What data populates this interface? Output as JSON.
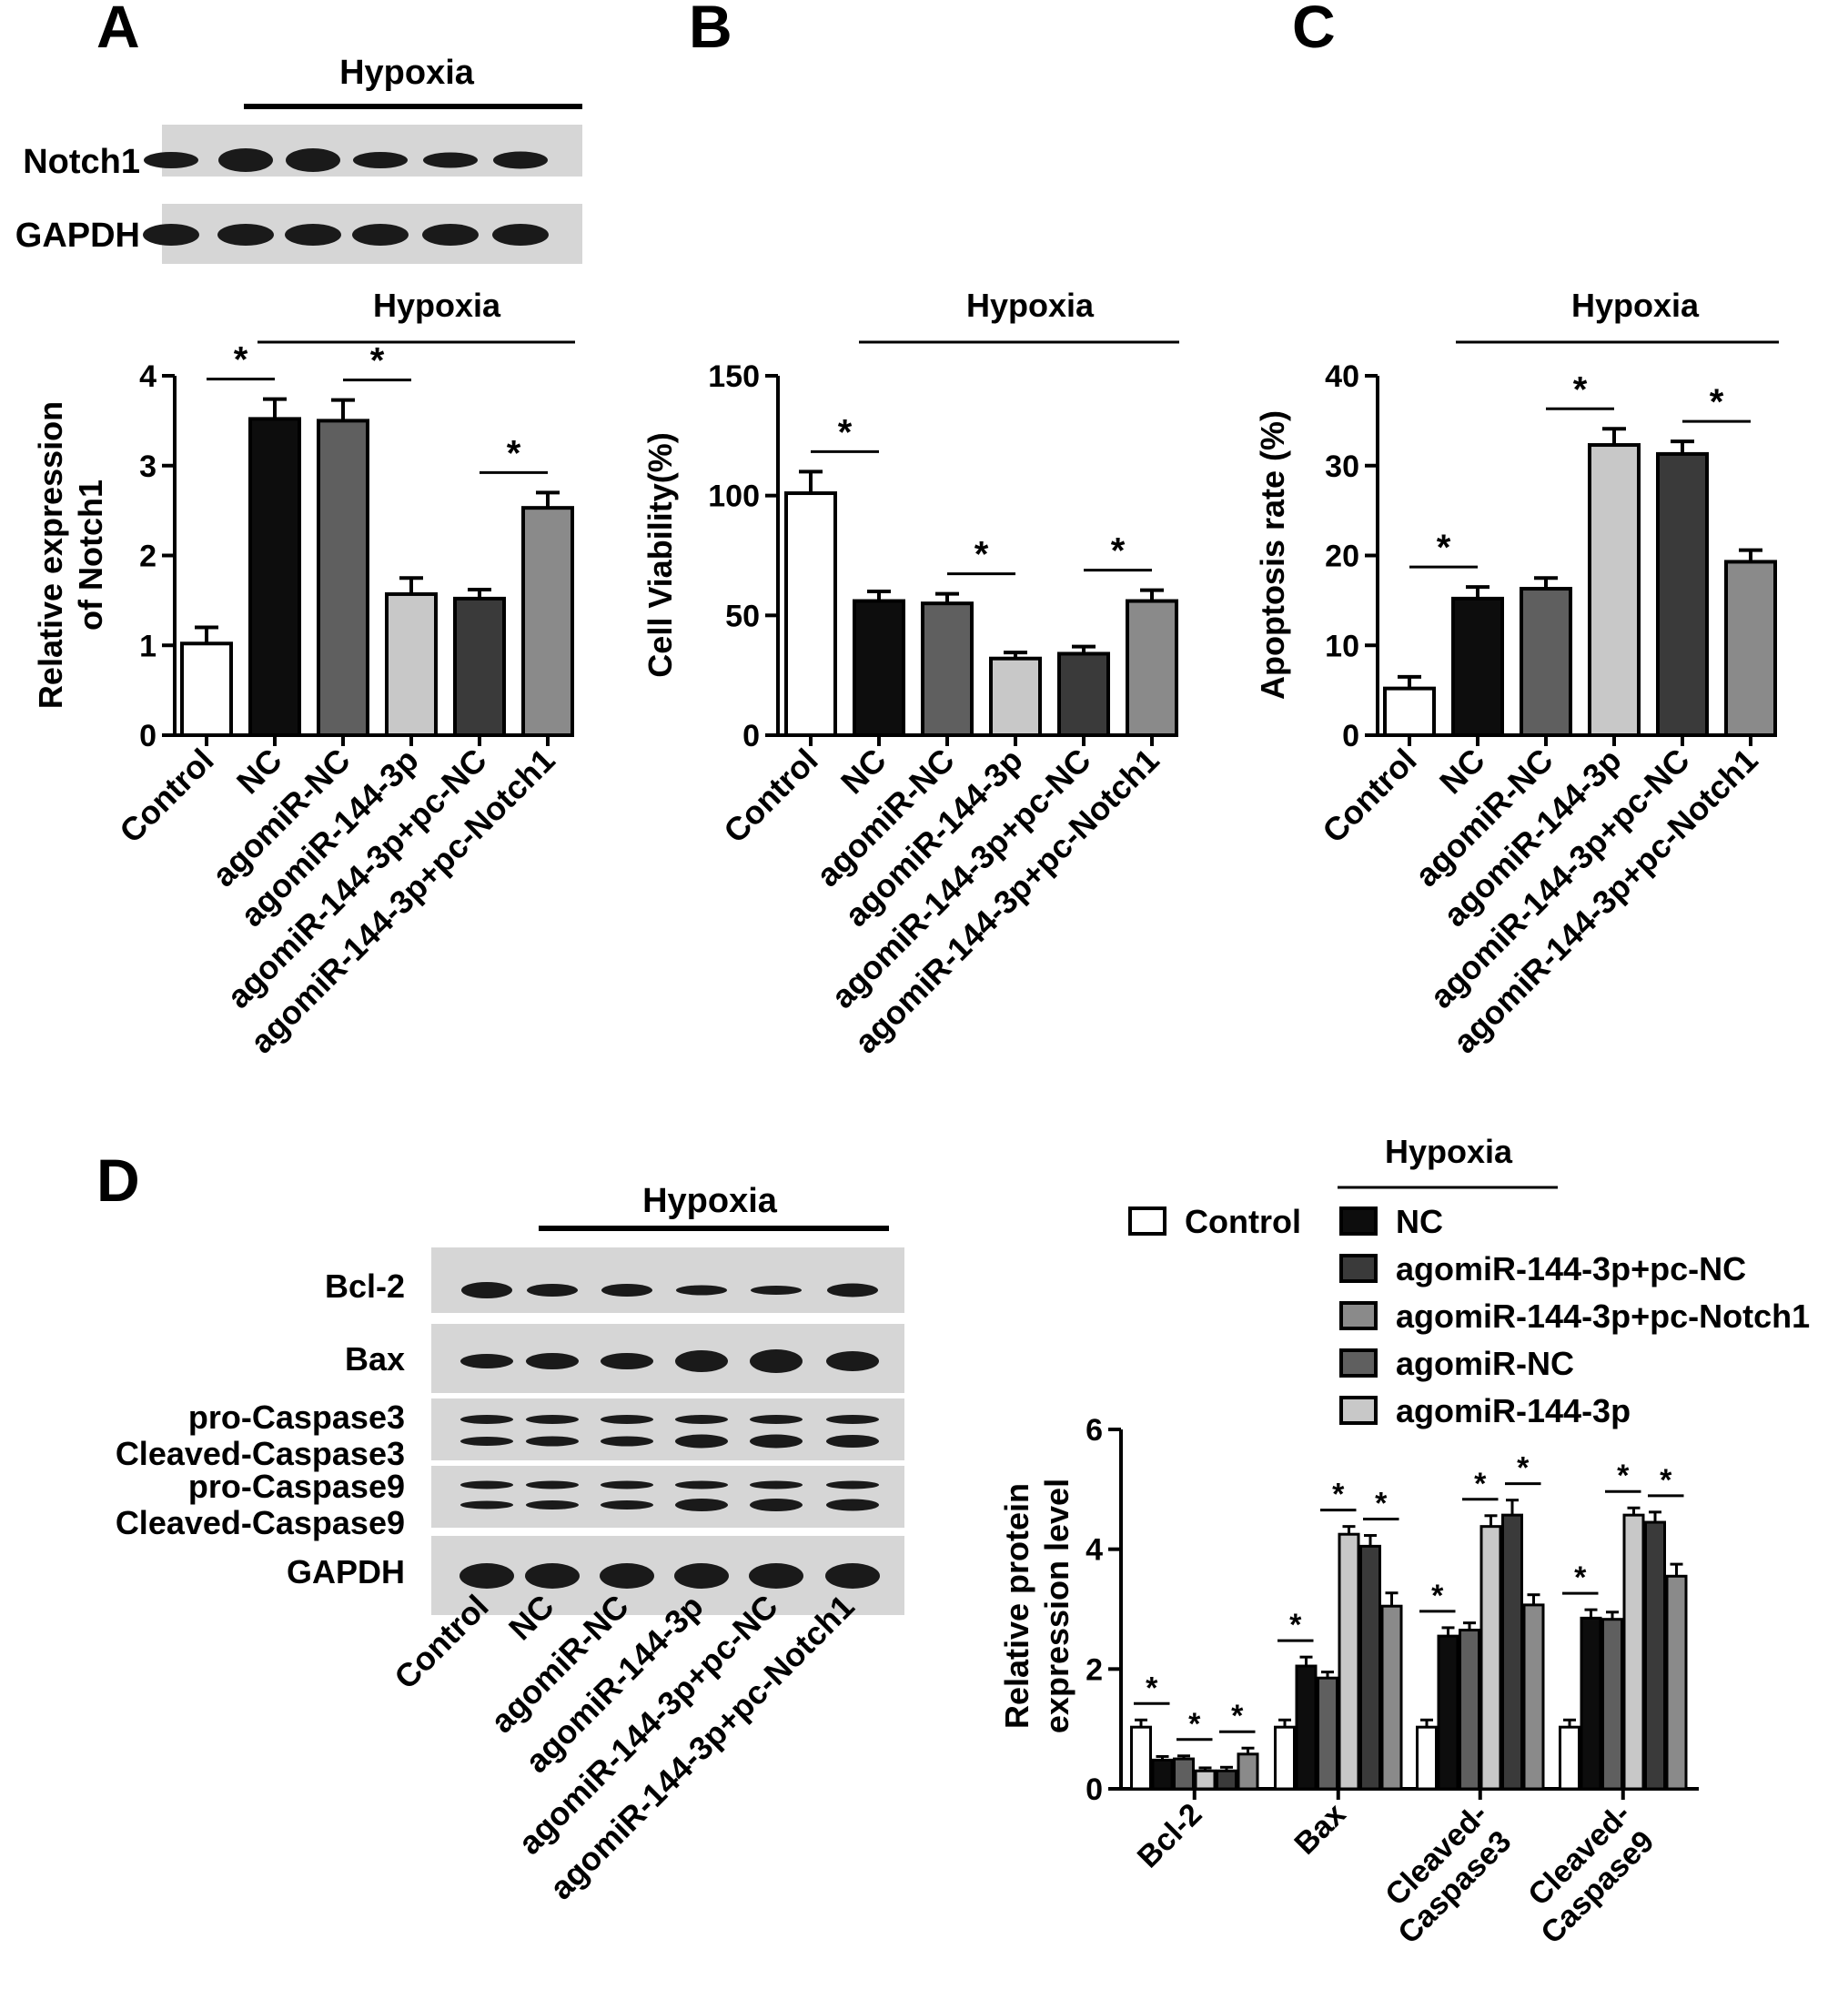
{
  "figure": {
    "panel_labels": [
      "A",
      "B",
      "C",
      "D"
    ],
    "asterisk": "*",
    "hypoxia_label": "Hypoxia",
    "groups": [
      "Control",
      "NC",
      "agomiR-NC",
      "agomiR-144-3p",
      "agomiR-144-3p+pc-NC",
      "agomiR-144-3p+pc-Notch1"
    ]
  },
  "colors": {
    "Control": "#ffffff",
    "NC": "#0d0d0d",
    "agomiR-NC": "#5f5f5f",
    "agomiR-144-3p": "#c8c8c8",
    "agomiR-144-3p+pc-NC": "#3a3a3a",
    "agomiR-144-3p+pc-Notch1": "#8a8a8a",
    "blot_background": "#d6d6d6",
    "blot_band": "#1a1a1a"
  },
  "blots": {
    "panel_a": {
      "rows": [
        "Notch1",
        "GAPDH"
      ]
    },
    "panel_d": {
      "rows": [
        "Bcl-2",
        "Bax",
        "pro-Caspase3",
        "Cleaved-Caspase3",
        "pro-Caspase9",
        "Cleaved-Caspase9",
        "GAPDH"
      ]
    }
  },
  "chart_data": [
    {
      "panel": "A",
      "type": "bar",
      "categories": [
        "Control",
        "NC",
        "agomiR-NC",
        "agomiR-144-3p",
        "agomiR-144-3p+pc-NC",
        "agomiR-144-3p+pc-Notch1"
      ],
      "values": [
        1.02,
        3.52,
        3.5,
        1.57,
        1.52,
        2.53
      ],
      "errors": [
        0.18,
        0.22,
        0.23,
        0.18,
        0.1,
        0.17
      ],
      "ylabel": "Relative expression of Notch1",
      "ylabel_lines": [
        "Relative expression",
        "of Notch1"
      ],
      "ylim": [
        0,
        4
      ],
      "yticks": [
        0,
        1,
        2,
        3,
        4
      ],
      "significance": [
        [
          0,
          1
        ],
        [
          2,
          3
        ],
        [
          4,
          5
        ]
      ]
    },
    {
      "panel": "B",
      "type": "bar",
      "categories": [
        "Control",
        "NC",
        "agomiR-NC",
        "agomiR-144-3p",
        "agomiR-144-3p+pc-NC",
        "agomiR-144-3p+pc-Notch1"
      ],
      "values": [
        101,
        56,
        55,
        32,
        34,
        56
      ],
      "errors": [
        9,
        4,
        4,
        2.5,
        3,
        4.5
      ],
      "ylabel": "Cell Viability(%)",
      "ylabel_lines": [
        "Cell Viability(%)"
      ],
      "ylim": [
        0,
        150
      ],
      "yticks": [
        0,
        50,
        100,
        150
      ],
      "significance": [
        [
          0,
          1
        ],
        [
          2,
          3
        ],
        [
          4,
          5
        ]
      ]
    },
    {
      "panel": "C",
      "type": "bar",
      "categories": [
        "Control",
        "NC",
        "agomiR-NC",
        "agomiR-144-3p",
        "agomiR-144-3p+pc-NC",
        "agomiR-144-3p+pc-Notch1"
      ],
      "values": [
        5.2,
        15.2,
        16.3,
        32.3,
        31.3,
        19.3
      ],
      "errors": [
        1.3,
        1.3,
        1.2,
        1.8,
        1.4,
        1.3
      ],
      "ylabel": "Apoptosis rate (%)",
      "ylabel_lines": [
        "Apoptosis rate (%)"
      ],
      "ylim": [
        0,
        40
      ],
      "yticks": [
        0,
        10,
        20,
        30,
        40
      ],
      "significance": [
        [
          0,
          1
        ],
        [
          2,
          3
        ],
        [
          4,
          5
        ]
      ]
    },
    {
      "panel": "D",
      "type": "bar",
      "categories": [
        "Bcl-2",
        "Bax",
        "Cleaved-Caspase3",
        "Cleaved-Caspase9"
      ],
      "category_label_lines": [
        [
          "Bcl-2"
        ],
        [
          "Bax"
        ],
        [
          "Cleaved-",
          "Caspase3"
        ],
        [
          "Cleaved-",
          "Caspase9"
        ]
      ],
      "legend_order": [
        "Control",
        "NC",
        "agomiR-144-3p+pc-NC",
        "agomiR-144-3p+pc-Notch1",
        "agomiR-NC",
        "agomiR-144-3p"
      ],
      "series": [
        {
          "name": "Control",
          "values": [
            1.03,
            1.03,
            1.03,
            1.03
          ],
          "errors": [
            0.12,
            0.12,
            0.12,
            0.12
          ]
        },
        {
          "name": "NC",
          "values": [
            0.48,
            2.05,
            2.55,
            2.85
          ],
          "errors": [
            0.06,
            0.15,
            0.14,
            0.14
          ]
        },
        {
          "name": "agomiR-NC",
          "values": [
            0.5,
            1.85,
            2.65,
            2.83
          ],
          "errors": [
            0.05,
            0.1,
            0.12,
            0.12
          ]
        },
        {
          "name": "agomiR-144-3p",
          "values": [
            0.3,
            4.25,
            4.38,
            4.57
          ],
          "errors": [
            0.05,
            0.13,
            0.18,
            0.12
          ]
        },
        {
          "name": "agomiR-144-3p+pc-NC",
          "values": [
            0.3,
            4.05,
            4.57,
            4.45
          ],
          "errors": [
            0.06,
            0.18,
            0.25,
            0.17
          ]
        },
        {
          "name": "agomiR-144-3p+pc-Notch1",
          "values": [
            0.58,
            3.05,
            3.07,
            3.55
          ],
          "errors": [
            0.1,
            0.22,
            0.17,
            0.2
          ]
        }
      ],
      "ylabel": "Relative protein expression level",
      "ylabel_lines": [
        "Relative protein",
        "expression level"
      ],
      "ylim": [
        0,
        6
      ],
      "yticks": [
        0,
        2,
        4,
        6
      ],
      "significance": [
        [
          0,
          1
        ],
        [
          2,
          3
        ],
        [
          4,
          5
        ]
      ],
      "legend_position": "top"
    }
  ]
}
